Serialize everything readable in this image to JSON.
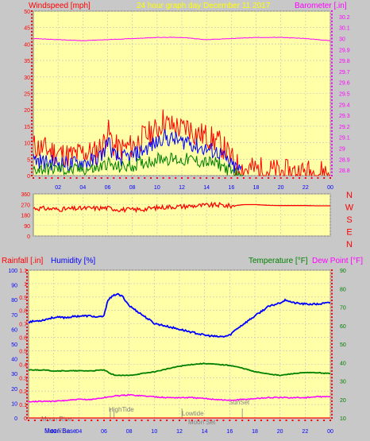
{
  "header": {
    "left_label": "Windspeed [mph]",
    "center_label": "24 hour graph day   December 11 2017",
    "right_label": "Barometer [.in]"
  },
  "colors": {
    "background": "#c8c8c8",
    "plot_bg": "#ffffa8",
    "wind_red": "#ff0000",
    "wind_blue": "#0000ff",
    "wind_green": "#008000",
    "barometer": "#ff00ff",
    "direction": "#ff0000",
    "humidity": "#0000ff",
    "temperature": "#008000",
    "dewpoint": "#ff00ff",
    "rain": "#ff0000",
    "center_title": "#ffff00"
  },
  "panel1": {
    "x_ticks": [
      "02",
      "04",
      "06",
      "08",
      "10",
      "12",
      "14",
      "16",
      "18",
      "20",
      "22",
      "00"
    ],
    "y_left_ticks": [
      "0",
      "5",
      "10",
      "15",
      "20",
      "25",
      "30",
      "35",
      "40",
      "45",
      "50"
    ],
    "y_right_ticks": [
      "28.8",
      "28.9",
      "29",
      "29.1",
      "29.2",
      "29.3",
      "29.4",
      "29.5",
      "29.6",
      "29.7",
      "29.8",
      "29.9",
      "30",
      "30.1",
      "30.2"
    ]
  },
  "panel2": {
    "y_ticks": [
      "0",
      "90",
      "180",
      "270",
      "360"
    ],
    "compass": [
      "N",
      "W",
      "S",
      "E",
      "N"
    ]
  },
  "panel3": {
    "label_rain": "Rainfall [.in]",
    "label_humidity": "Humidity [%]",
    "label_temperature": "Temperature [°F]",
    "label_dewpoint": "Dew Point [°F]",
    "x_ticks": [
      "02",
      "04",
      "06",
      "08",
      "10",
      "12",
      "14",
      "16",
      "18",
      "20",
      "22",
      "00"
    ],
    "rain_ticks": [
      "0",
      "0.1",
      "0.2",
      "0.3",
      "0.4",
      "0.5",
      "0.6",
      "0.7",
      "0.8",
      "0.9",
      "1",
      "1.1"
    ],
    "humidity_ticks": [
      "0",
      "10",
      "20",
      "30",
      "40",
      "50",
      "60",
      "70",
      "80",
      "90",
      "100"
    ],
    "temp_ticks": [
      "10",
      "20",
      "30",
      "40",
      "50",
      "60",
      "70",
      "80",
      "90"
    ],
    "annotations": {
      "moon_rise": "Moon Rise",
      "high_tide": "HighTide",
      "low_tide": "Lowtide",
      "moon_set": "Moon Set",
      "sun_set": "SunSet",
      "sun_rise": "Sun Rise",
      "moon_base": "Moon Base"
    }
  },
  "chart_data": [
    {
      "type": "line",
      "title": "24 hour graph day   December 11 2017",
      "ylabel": "Windspeed [mph]",
      "y2label": "Barometer [.in]",
      "xlim": [
        0,
        24
      ],
      "ylim": [
        0,
        50
      ],
      "y2lim": [
        28.75,
        30.25
      ],
      "series": [
        {
          "name": "Windspeed [mph]",
          "axis": "left",
          "x": [
            0,
            1,
            2,
            3,
            4,
            5,
            5.7,
            6,
            6.5,
            7,
            8,
            9,
            10,
            10.5,
            11,
            11.5,
            12,
            12.5,
            13,
            14,
            15,
            15.5,
            16,
            16.5,
            17,
            18,
            20,
            22,
            24
          ],
          "values": [
            5,
            4,
            4,
            3.5,
            4,
            4.5,
            7,
            11,
            6,
            5,
            6,
            8,
            10,
            12,
            11,
            11,
            10,
            11,
            9,
            8,
            7,
            5,
            3,
            2,
            1,
            1,
            0.5,
            0.5,
            0.5
          ]
        },
        {
          "name": "gust",
          "axis": "left",
          "x": [
            0,
            1,
            2,
            3,
            4,
            5,
            5.7,
            6,
            6.5,
            7,
            8,
            9,
            10,
            10.5,
            11,
            11.5,
            12,
            12.5,
            13,
            14,
            15,
            15.5,
            16,
            16.5,
            17,
            18,
            20,
            22,
            24
          ],
          "values": [
            9,
            8,
            7,
            6,
            7,
            7,
            10,
            14,
            9,
            8,
            9,
            12,
            14,
            17,
            15,
            15,
            14,
            15,
            13,
            12,
            10,
            8,
            5,
            3,
            2,
            2,
            1,
            1,
            1
          ]
        },
        {
          "name": "average",
          "axis": "left",
          "x": [
            0,
            1,
            2,
            3,
            4,
            5,
            5.7,
            6,
            6.5,
            7,
            8,
            9,
            10,
            10.5,
            11,
            11.5,
            12,
            12.5,
            13,
            14,
            15,
            15.5,
            16,
            16.5,
            17
          ],
          "values": [
            2,
            2,
            2,
            1.5,
            2,
            2,
            3,
            4,
            2.5,
            2.5,
            3,
            4,
            5,
            5.5,
            5,
            5,
            4.5,
            5,
            4.5,
            4,
            3.5,
            2.5,
            1,
            0.5,
            0
          ]
        },
        {
          "name": "Barometer [.in]",
          "axis": "right",
          "x": [
            0,
            2,
            4,
            6,
            8,
            10,
            12,
            14,
            16,
            18,
            20,
            22,
            24
          ],
          "values": [
            30.0,
            29.99,
            29.98,
            29.99,
            30.0,
            30.01,
            30.01,
            29.99,
            30.0,
            30.01,
            30.01,
            30.0,
            29.98
          ]
        }
      ]
    },
    {
      "type": "line",
      "ylabel": "Wind direction",
      "xlim": [
        0,
        24
      ],
      "ylim": [
        0,
        360
      ],
      "series": [
        {
          "name": "direction",
          "x": [
            0,
            1,
            2,
            3,
            4,
            5,
            6,
            7,
            8,
            9,
            10,
            11,
            12,
            13,
            14,
            15,
            16,
            17,
            18,
            19,
            20,
            21,
            22,
            23,
            24
          ],
          "values": [
            238,
            235,
            228,
            232,
            236,
            238,
            240,
            226,
            224,
            230,
            242,
            250,
            252,
            258,
            262,
            265,
            256,
            268,
            268,
            262,
            260,
            260,
            260,
            258,
            258
          ]
        }
      ]
    },
    {
      "type": "line",
      "xlim": [
        0,
        24
      ],
      "series": [
        {
          "name": "Humidity [%]",
          "axis": "humidity",
          "x": [
            0,
            1,
            2,
            3,
            4,
            5,
            5.5,
            6,
            6.3,
            7,
            7.5,
            8,
            9,
            10,
            11,
            12,
            13,
            14,
            15,
            15.5,
            16,
            16.5,
            17,
            18,
            19,
            20,
            20.5,
            21,
            22,
            23,
            24
          ],
          "values": [
            65,
            66,
            68,
            68,
            69,
            69,
            68,
            69,
            80,
            84,
            82,
            76,
            70,
            64,
            62,
            60,
            58,
            56,
            55,
            55,
            56,
            60,
            63,
            69,
            75,
            78,
            80,
            78,
            77,
            77,
            78
          ]
        },
        {
          "name": "Temperature [°F]",
          "axis": "temp",
          "x": [
            0,
            1,
            2,
            3,
            4,
            5,
            6,
            6.5,
            7,
            8,
            9,
            10,
            11,
            12,
            13,
            14,
            15,
            16,
            17,
            18,
            19,
            20,
            21,
            22,
            23,
            24
          ],
          "values": [
            36,
            36,
            35.5,
            35.5,
            35.5,
            35.5,
            36,
            34,
            33,
            33,
            34,
            35,
            36.5,
            38,
            39,
            39.5,
            39,
            38.5,
            37,
            35,
            34,
            33,
            34,
            34.5,
            34.5,
            34
          ]
        },
        {
          "name": "Dew Point [°F]",
          "axis": "temp",
          "x": [
            0,
            1,
            2,
            3,
            4,
            5,
            6,
            7,
            8,
            9,
            10,
            11,
            12,
            13,
            14,
            15,
            16,
            17,
            18,
            19,
            20,
            21,
            22,
            23,
            24
          ],
          "values": [
            19,
            19,
            19,
            19.5,
            20,
            20,
            21,
            22,
            22.5,
            22,
            21.5,
            21,
            21,
            21,
            20.5,
            20,
            19.5,
            20,
            20.5,
            21,
            21,
            21,
            21,
            21.5,
            21.5
          ]
        },
        {
          "name": "Rainfall [.in]",
          "axis": "rain",
          "x": [
            0,
            24
          ],
          "values": [
            0,
            0
          ]
        }
      ],
      "ylim_humidity": [
        0,
        100
      ],
      "ylim_rain": [
        0,
        1.1
      ],
      "ylim_temp": [
        10,
        90
      ]
    }
  ]
}
